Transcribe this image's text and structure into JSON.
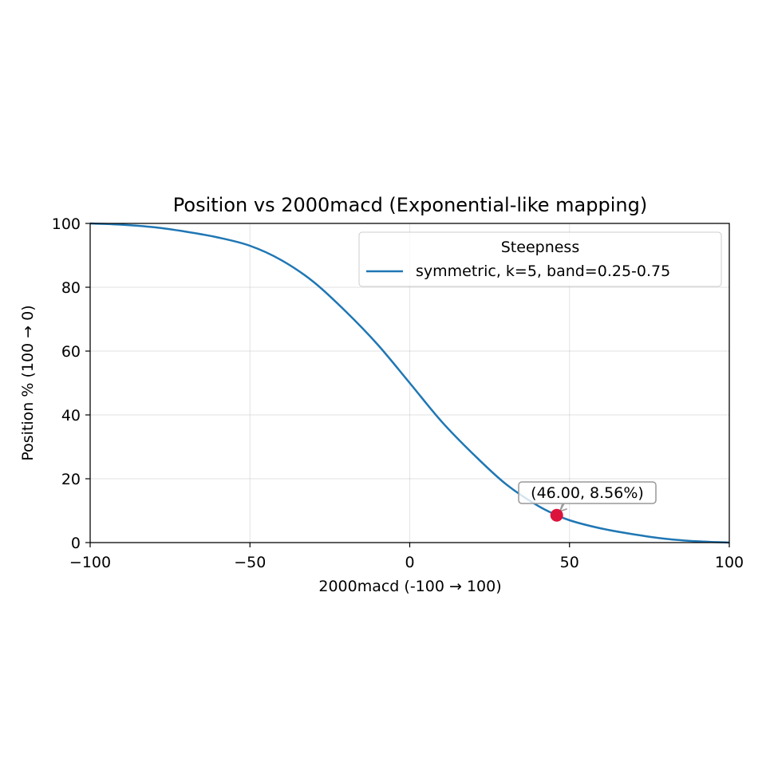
{
  "chart_data": {
    "type": "line",
    "title": "Position vs 2000macd (Exponential-like mapping)",
    "xlabel": "2000macd (-100 → 100)",
    "ylabel": "Position % (100 → 0)",
    "xlim": [
      -100,
      100
    ],
    "ylim": [
      0,
      100
    ],
    "xticks": [
      -100,
      -50,
      0,
      50,
      100
    ],
    "xtick_labels": [
      "−100",
      "−50",
      "0",
      "50",
      "100"
    ],
    "yticks": [
      0,
      20,
      40,
      60,
      80,
      100
    ],
    "ytick_labels": [
      "0",
      "20",
      "40",
      "60",
      "80",
      "100"
    ],
    "grid": true,
    "legend": {
      "title": "Steepness",
      "placement": "top-right"
    },
    "series": [
      {
        "name": "symmetric, k=5, band=0.25-0.75",
        "color": "#1f77b4",
        "x": [
          -100,
          -90,
          -80,
          -70,
          -60,
          -50,
          -40,
          -30,
          -20,
          -10,
          0,
          10,
          20,
          30,
          40,
          46,
          50,
          60,
          70,
          80,
          90,
          100
        ],
        "y": [
          100,
          99.6,
          98.8,
          97.4,
          95.6,
          93.0,
          88.4,
          81.6,
          72.4,
          62.0,
          50.0,
          37.9,
          27.6,
          18.4,
          11.6,
          8.56,
          7.0,
          4.4,
          2.6,
          1.2,
          0.4,
          0
        ]
      }
    ],
    "highlight_point": {
      "x": 46.0,
      "y": 8.56,
      "color": "#dc143c",
      "label": "(46.00, 8.56%)"
    }
  }
}
